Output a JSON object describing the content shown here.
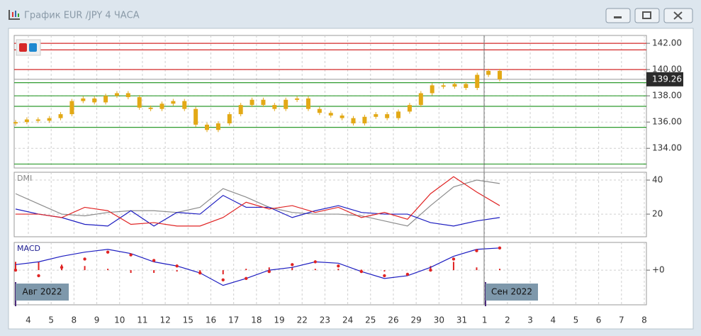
{
  "window": {
    "title": "График EUR /JPY  4 ЧАСА"
  },
  "x_axis": {
    "labels": [
      "4",
      "5",
      "8",
      "9",
      "10",
      "11",
      "12",
      "15",
      "16",
      "17",
      "18",
      "19",
      "22",
      "23",
      "24",
      "25",
      "26",
      "29",
      "30",
      "31",
      "1",
      "2",
      "3",
      "4",
      "5",
      "6",
      "7",
      "8"
    ],
    "month_labels": [
      "Авг 2022",
      "Сен 2022"
    ]
  },
  "chart_data": [
    {
      "type": "candlestick",
      "color": "#e3a916",
      "close": [
        136.0,
        136.2,
        136.1,
        136.3,
        136.6,
        137.6,
        137.8,
        137.5,
        138.0,
        138.2,
        137.9,
        137.1,
        137.0,
        137.4,
        137.6,
        137.0,
        135.8,
        135.4,
        135.9,
        136.6,
        137.3,
        137.7,
        137.3,
        137.0,
        137.7,
        137.8,
        137.0,
        136.7,
        136.5,
        136.3,
        135.9,
        136.4,
        136.6,
        136.3,
        136.8,
        137.3,
        138.2,
        138.8,
        138.7,
        138.9,
        138.6,
        139.6,
        139.9,
        139.26
      ],
      "levels": [
        {
          "value": 142.0,
          "color": "#d42a2a"
        },
        {
          "value": 141.5,
          "color": "#d42a2a"
        },
        {
          "value": 140.0,
          "color": "#d42a2a"
        },
        {
          "value": 139.0,
          "color": "#2e9b2e"
        },
        {
          "value": 138.0,
          "color": "#2e9b2e"
        },
        {
          "value": 137.2,
          "color": "#2e9b2e"
        },
        {
          "value": 135.6,
          "color": "#2e9b2e"
        },
        {
          "value": 132.8,
          "color": "#2e9b2e"
        }
      ],
      "last_price": 139.26,
      "ylim": [
        132.5,
        142.6
      ],
      "yticks": [
        {
          "value": 142,
          "label": "142.00"
        },
        {
          "value": 140,
          "label": "140.00"
        },
        {
          "value": 138,
          "label": "138.00"
        },
        {
          "value": 136,
          "label": "136.00"
        },
        {
          "value": 134,
          "label": "134.00"
        }
      ],
      "grid": true
    },
    {
      "type": "line",
      "label": "DMI",
      "series": [
        {
          "color": "#8c8c8c",
          "values": [
            32,
            26,
            20,
            19,
            21,
            22,
            22,
            21,
            24,
            35,
            30,
            24,
            21,
            20,
            20,
            19,
            16,
            13,
            25,
            36,
            40,
            38
          ]
        },
        {
          "color": "#1c1cc0",
          "values": [
            23,
            20,
            18,
            14,
            13,
            22,
            13,
            21,
            20,
            31,
            24,
            24,
            18,
            22,
            25,
            21,
            20,
            20,
            15,
            13,
            16,
            18
          ]
        },
        {
          "color": "#e02424",
          "values": [
            20,
            20,
            18,
            24,
            22,
            14,
            15,
            13,
            13,
            18,
            27,
            23,
            25,
            21,
            24,
            18,
            21,
            17,
            32,
            42,
            33,
            25
          ]
        }
      ],
      "ylim": [
        6.7,
        44.6
      ],
      "yticks": [
        40,
        20
      ],
      "grid": true
    },
    {
      "type": "macd",
      "label": "MACD",
      "histogram": {
        "color": "#e02424",
        "values": [
          0.3,
          0.3,
          0.2,
          0.15,
          0.05,
          -0.1,
          -0.1,
          -0.05,
          -0.1,
          -0.15,
          0.05,
          0.1,
          0.1,
          0.05,
          0.05,
          0.02,
          -0.05,
          0,
          0.15,
          0.3,
          0.1,
          0.05
        ]
      },
      "macd": {
        "color": "#1c1cc0",
        "values": [
          0.2,
          0.3,
          0.5,
          0.65,
          0.75,
          0.6,
          0.3,
          0.15,
          -0.1,
          -0.55,
          -0.3,
          0,
          0.1,
          0.3,
          0.25,
          -0.05,
          -0.3,
          -0.2,
          0.1,
          0.5,
          0.75,
          0.8
        ]
      },
      "signal": {
        "color": "#e02424",
        "values": [
          0.0,
          -0.2,
          0.1,
          0.4,
          0.65,
          0.55,
          0.35,
          0.15,
          -0.1,
          -0.35,
          -0.3,
          -0.05,
          0.2,
          0.3,
          0.15,
          -0.05,
          -0.2,
          -0.15,
          0,
          0.4,
          0.7,
          0.8
        ]
      },
      "ylim": [
        -1.25,
        1.0
      ],
      "yticks": [
        {
          "value": 0,
          "label": "+0"
        }
      ],
      "grid": true
    }
  ]
}
